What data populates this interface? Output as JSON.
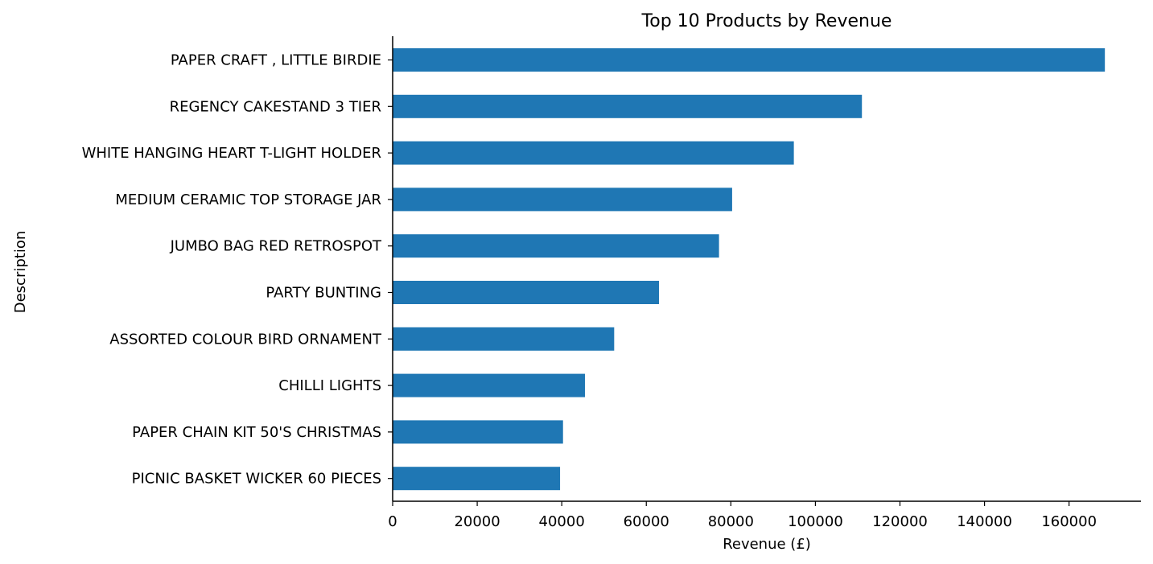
{
  "chart_data": {
    "type": "bar",
    "orientation": "horizontal",
    "title": "Top 10 Products by Revenue",
    "xlabel": "Revenue (£)",
    "ylabel": "Description",
    "xlim": [
      0,
      177000
    ],
    "xticks": [
      0,
      20000,
      40000,
      60000,
      80000,
      100000,
      120000,
      140000,
      160000
    ],
    "grid": false,
    "bar_color": "#1f77b4",
    "categories": [
      "PAPER CRAFT , LITTLE BIRDIE",
      "REGENCY CAKESTAND 3 TIER",
      "WHITE HANGING HEART T-LIGHT HOLDER",
      "MEDIUM CERAMIC TOP STORAGE JAR",
      "JUMBO BAG RED RETROSPOT",
      "PARTY BUNTING",
      "ASSORTED COLOUR BIRD ORNAMENT",
      "CHILLI LIGHTS",
      "PAPER CHAIN KIT 50'S CHRISTMAS ",
      "PICNIC BASKET WICKER 60 PIECES"
    ],
    "values": [
      168470,
      111000,
      94900,
      80300,
      77200,
      63000,
      52400,
      45500,
      40300,
      39600
    ]
  }
}
